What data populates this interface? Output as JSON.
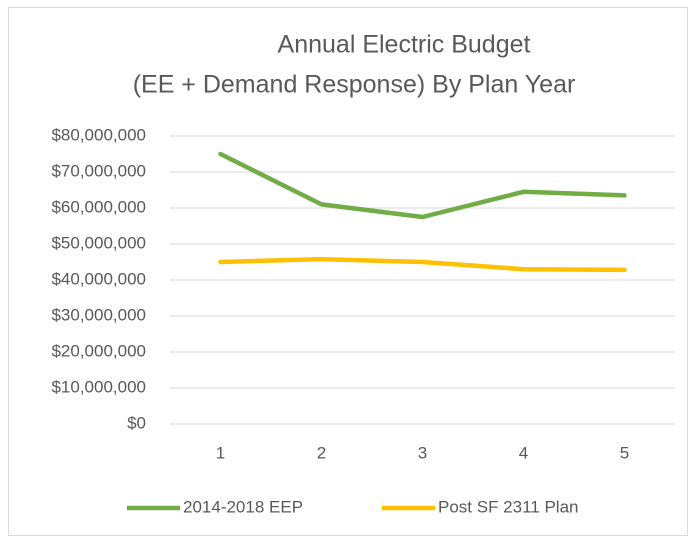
{
  "chart_data": {
    "type": "line",
    "title": [
      "Annual Electric Budget",
      "(EE + Demand Response) By Plan Year"
    ],
    "categories": [
      "1",
      "2",
      "3",
      "4",
      "5"
    ],
    "series": [
      {
        "name": "2014-2018 EEP",
        "color": "#70ad47",
        "values": [
          75000000,
          61000000,
          57500000,
          64500000,
          63500000
        ]
      },
      {
        "name": "Post SF 2311 Plan",
        "color": "#ffc000",
        "values": [
          45000000,
          45800000,
          45000000,
          43000000,
          42800000
        ]
      }
    ],
    "ylim": [
      0,
      80000000
    ],
    "yticks": [
      {
        "value": 0,
        "label": "$0"
      },
      {
        "value": 10000000,
        "label": "$10,000,000"
      },
      {
        "value": 20000000,
        "label": "$20,000,000"
      },
      {
        "value": 30000000,
        "label": "$30,000,000"
      },
      {
        "value": 40000000,
        "label": "$40,000,000"
      },
      {
        "value": 50000000,
        "label": "$50,000,000"
      },
      {
        "value": 60000000,
        "label": "$60,000,000"
      },
      {
        "value": 70000000,
        "label": "$70,000,000"
      },
      {
        "value": 80000000,
        "label": "$80,000,000"
      }
    ],
    "grid": true,
    "legend": "bottom"
  }
}
